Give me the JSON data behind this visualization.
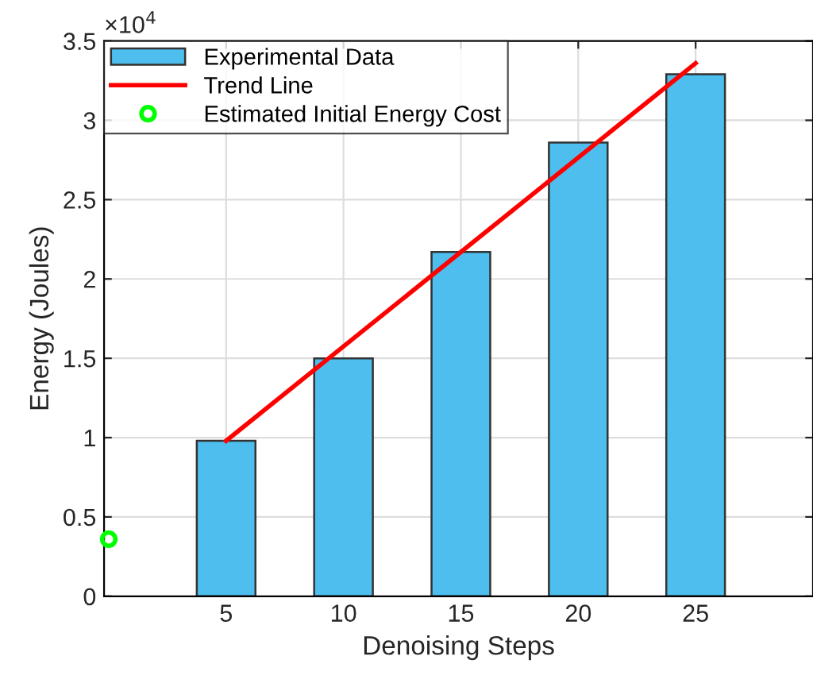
{
  "chart_data": {
    "type": "bar",
    "xlabel": "Denoising Steps",
    "ylabel": "Energy (Joules)",
    "series": [
      {
        "name": "Experimental Data",
        "color": "#4dbeee",
        "x": [
          5,
          10,
          15,
          20,
          25
        ],
        "values": [
          0.98,
          1.5,
          2.17,
          2.86,
          3.29
        ]
      },
      {
        "type": "line",
        "name": "Trend Line",
        "color": "#ff0000",
        "x": [
          5,
          25
        ],
        "values": [
          0.98,
          3.36
        ]
      },
      {
        "type": "scatter",
        "name": "Estimated Initial Energy Cost",
        "color": "#00ff00",
        "x": [
          0
        ],
        "values": [
          0.36
        ],
        "marker": "circle"
      }
    ],
    "xlim": [
      -0.2,
      30
    ],
    "xticks": [
      5,
      10,
      15,
      20,
      25
    ],
    "ylim": [
      0,
      3.5
    ],
    "yticks": [
      0,
      0.5,
      1,
      1.5,
      2,
      2.5,
      3,
      3.5
    ],
    "annotations": [
      "×10$^{4}$"
    ],
    "grid": true,
    "legend": "top left"
  }
}
